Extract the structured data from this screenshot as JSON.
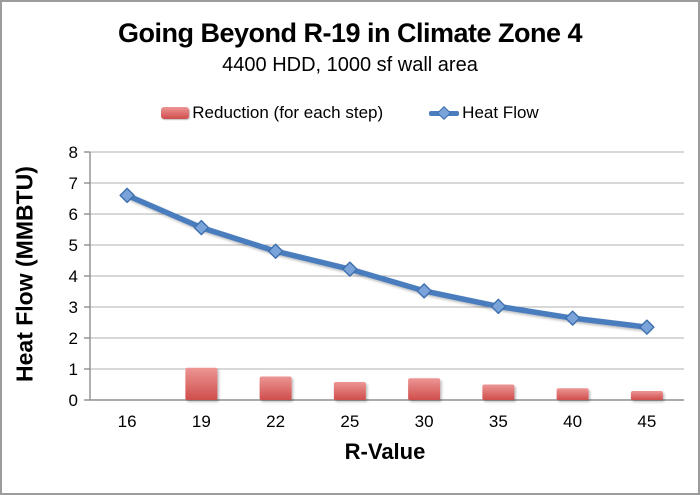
{
  "chart_data": {
    "type": "combo-bar-line",
    "title": "Going Beyond R-19 in Climate Zone 4",
    "subtitle": "4400 HDD, 1000 sf wall area",
    "xlabel": "R-Value",
    "ylabel": "Heat Flow (MMBTU)",
    "categories": [
      "16",
      "19",
      "22",
      "25",
      "30",
      "35",
      "40",
      "45"
    ],
    "y_ticks": [
      0,
      1,
      2,
      3,
      4,
      5,
      6,
      7,
      8
    ],
    "ylim": [
      0,
      8
    ],
    "grid": true,
    "legend_position": "top",
    "series": [
      {
        "name": "Reduction (for each step)",
        "type": "bar",
        "color_top": "#EC9694",
        "color_bottom": "#CF4E4C",
        "values": [
          null,
          1.04,
          0.76,
          0.58,
          0.7,
          0.5,
          0.38,
          0.29
        ]
      },
      {
        "name": "Heat Flow",
        "type": "line",
        "color": "#4A7DBE",
        "marker_fill": "#79A3D9",
        "marker_stroke": "#3E70AE",
        "values": [
          6.6,
          5.56,
          4.8,
          4.22,
          3.52,
          3.02,
          2.64,
          2.35
        ]
      }
    ],
    "style": {
      "grid_color": "#B0B0B0",
      "axis_color": "#8E8E8E",
      "frame_border_color": "#9C9C9C"
    }
  }
}
